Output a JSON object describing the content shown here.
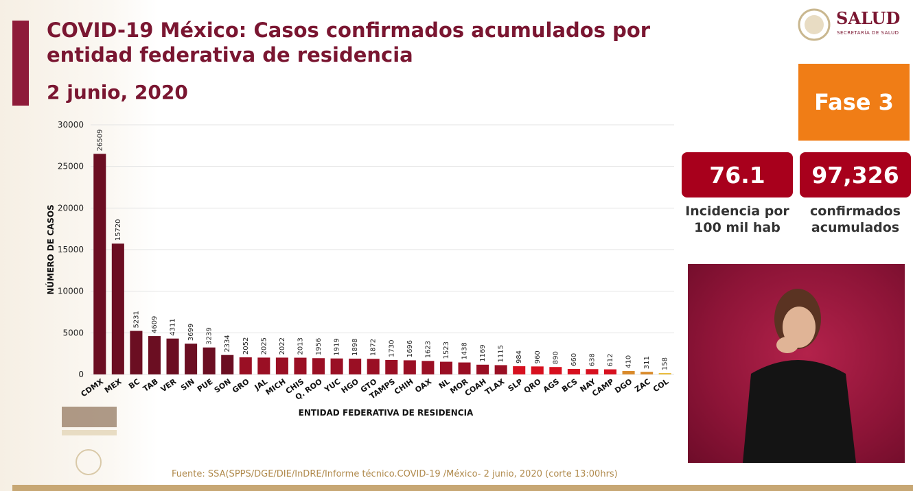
{
  "header": {
    "title": "COVID-19 México: Casos confirmados acumulados por entidad federativa de residencia",
    "date": "2 junio, 2020"
  },
  "logo": {
    "name": "SALUD",
    "subtitle": "SECRETARÍA DE SALUD"
  },
  "phase": {
    "label": "Fase 3",
    "color": "#f07d16"
  },
  "stats": {
    "incidence_value": "76.1",
    "incidence_label_1": "Incidencia por",
    "incidence_label_2": "100 mil hab",
    "confirmed_value": "97,326",
    "confirmed_label_1": "confirmados",
    "confirmed_label_2": "acumulados"
  },
  "footer": {
    "source": "Fuente: SSA(SPPS/DGE/DIE/InDRE/Informe técnico.COVID-19 /México- 2 junio, 2020 (corte 13:00hrs)"
  },
  "chart_data": {
    "type": "bar",
    "title": "",
    "xlabel": "ENTIDAD FEDERATIVA DE RESIDENCIA",
    "ylabel": "NÚMERO DE CASOS",
    "ylim": [
      0,
      30000
    ],
    "yticks": [
      0,
      5000,
      10000,
      15000,
      20000,
      25000,
      30000
    ],
    "categories": [
      "CDMX",
      "MEX",
      "BC",
      "TAB",
      "VER",
      "SIN",
      "PUE",
      "SON",
      "GRO",
      "JAL",
      "MICH",
      "CHIS",
      "Q. ROO",
      "YUC",
      "HGO",
      "GTO",
      "TAMPS",
      "CHIH",
      "OAX",
      "NL",
      "MOR",
      "COAH",
      "TLAX",
      "SLP",
      "QRO",
      "AGS",
      "BCS",
      "NAY",
      "CAMP",
      "DGO",
      "ZAC",
      "COL"
    ],
    "values": [
      26509,
      15720,
      5231,
      4609,
      4311,
      3699,
      3239,
      2334,
      2052,
      2025,
      2022,
      2013,
      1956,
      1919,
      1898,
      1872,
      1730,
      1696,
      1623,
      1523,
      1438,
      1169,
      1115,
      984,
      960,
      890,
      660,
      638,
      612,
      410,
      311,
      158
    ],
    "colors": [
      "#6b0e22",
      "#6b0e22",
      "#6b0e22",
      "#6b0e22",
      "#6b0e22",
      "#6b0e22",
      "#6b0e22",
      "#6b0e22",
      "#9a0f24",
      "#9a0f24",
      "#9a0f24",
      "#9a0f24",
      "#9a0f24",
      "#9a0f24",
      "#9a0f24",
      "#9a0f24",
      "#9a0f24",
      "#9a0f24",
      "#9a0f24",
      "#9a0f24",
      "#9a0f24",
      "#9a0f24",
      "#9a0f24",
      "#d7101f",
      "#d7101f",
      "#d7101f",
      "#d7101f",
      "#d7101f",
      "#d7101f",
      "#d98a2a",
      "#d98a2a",
      "#e8b830"
    ],
    "grid": true
  }
}
